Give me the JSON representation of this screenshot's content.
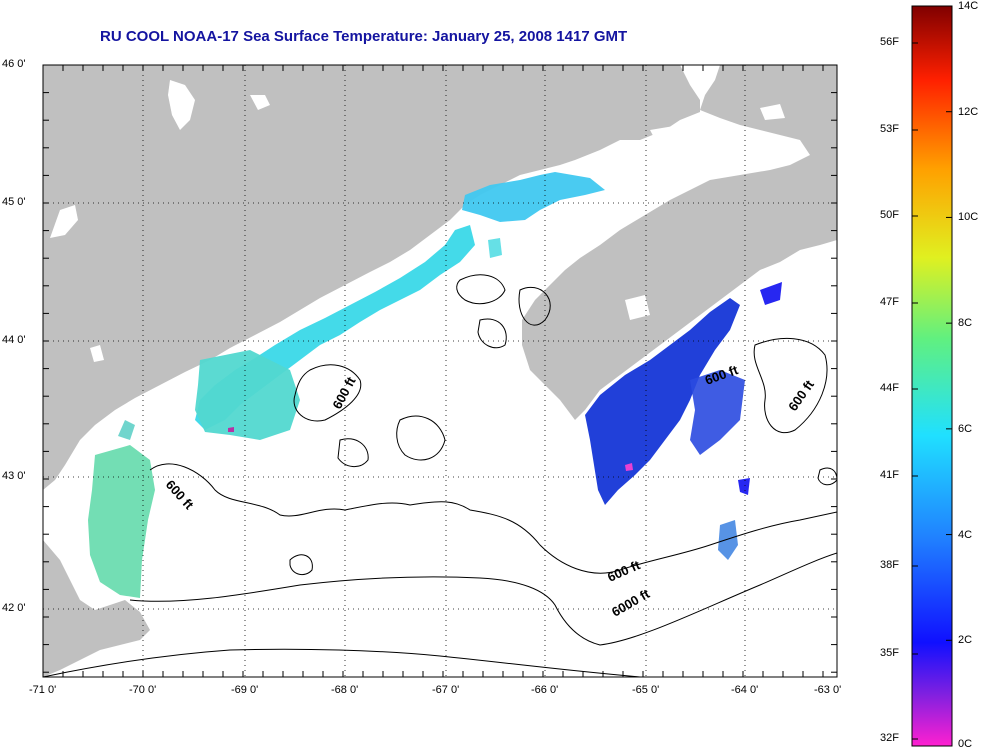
{
  "title": "RU COOL  NOAA-17  Sea Surface Temperature:  January 25, 2008 1417 GMT",
  "lat_labels": [
    "46 0'",
    "45 0'",
    "44 0'",
    "43 0'",
    "42 0'"
  ],
  "lon_labels": [
    "-71 0'",
    "-70 0'",
    "-69 0'",
    "-68 0'",
    "-67 0'",
    "-66 0'",
    "-65 0'",
    "-64 0'",
    "-63 0'"
  ],
  "contour_labels": [
    "600 ft",
    "600 ft",
    "600 ft",
    "600 ft",
    "600 ft",
    "6000 ft"
  ],
  "colorbar": {
    "fahrenheit": [
      "56F",
      "53F",
      "50F",
      "47F",
      "44F",
      "41F",
      "38F",
      "35F",
      "32F"
    ],
    "celsius": [
      "14C",
      "12C",
      "10C",
      "8C",
      "6C",
      "4C",
      "2C",
      "0C"
    ],
    "range_c": [
      0,
      14
    ]
  },
  "colors": {
    "land": "#c0c0c0",
    "water": "#ffffff",
    "title": "#1414a0",
    "sst_cyan": "#40d8e0",
    "sst_lightgreen": "#68e0a8",
    "sst_blue": "#1a3ad8",
    "sst_deepblue": "#1010f0"
  }
}
